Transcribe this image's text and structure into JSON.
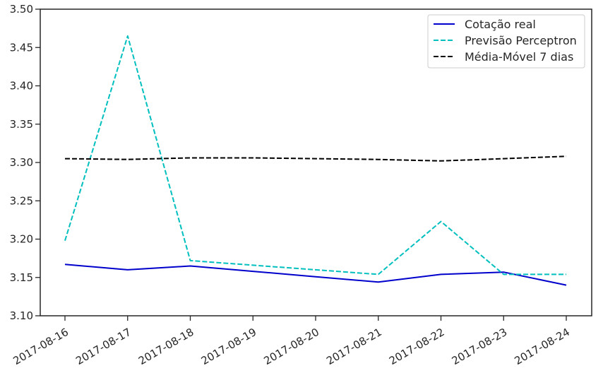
{
  "chart_data": {
    "type": "line",
    "title": "",
    "xlabel": "",
    "ylabel": "",
    "x": [
      "2017-08-16",
      "2017-08-17",
      "2017-08-18",
      "2017-08-19",
      "2017-08-20",
      "2017-08-21",
      "2017-08-22",
      "2017-08-23",
      "2017-08-24"
    ],
    "ylim": [
      3.1,
      3.5
    ],
    "yticks": [
      "3.10",
      "3.15",
      "3.20",
      "3.25",
      "3.30",
      "3.35",
      "3.40",
      "3.45",
      "3.50"
    ],
    "grid": false,
    "legend_position": "top-right",
    "series": [
      {
        "name": "Cotação real",
        "style": "solid",
        "color": "#0000cc",
        "values": [
          3.167,
          3.16,
          3.165,
          3.158,
          3.151,
          3.144,
          3.154,
          3.157,
          3.14
        ]
      },
      {
        "name": "Previsão Perceptron",
        "style": "dashed",
        "color": "#00bfbf",
        "values": [
          3.198,
          3.465,
          3.172,
          3.166,
          3.16,
          3.154,
          3.223,
          3.154,
          3.154
        ]
      },
      {
        "name": "Média-Móvel 7 dias",
        "style": "dashed",
        "color": "#000000",
        "values": [
          3.305,
          3.304,
          3.306,
          3.306,
          3.305,
          3.304,
          3.302,
          3.305,
          3.308
        ]
      }
    ]
  }
}
